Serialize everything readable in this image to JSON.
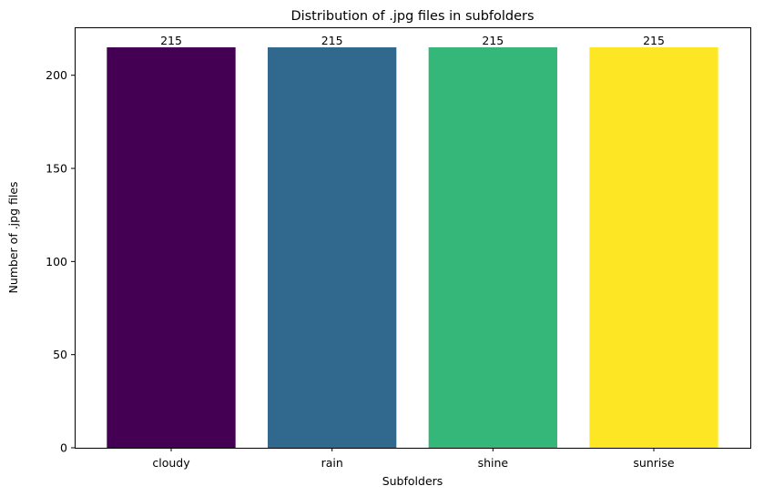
{
  "chart_data": {
    "type": "bar",
    "title": "Distribution of .jpg files in subfolders",
    "xlabel": "Subfolders",
    "ylabel": "Number of .jpg files",
    "categories": [
      "cloudy",
      "rain",
      "shine",
      "sunrise"
    ],
    "values": [
      215,
      215,
      215,
      215
    ],
    "data_labels": [
      "215",
      "215",
      "215",
      "215"
    ],
    "bar_colors": [
      "#440154",
      "#31688e",
      "#35b779",
      "#fde725"
    ],
    "ylim": [
      0,
      225.75
    ],
    "yticks": [
      0,
      50,
      100,
      150,
      200
    ],
    "ytick_labels": [
      "0",
      "50",
      "100",
      "150",
      "200"
    ],
    "grid": false,
    "legend": "none"
  }
}
